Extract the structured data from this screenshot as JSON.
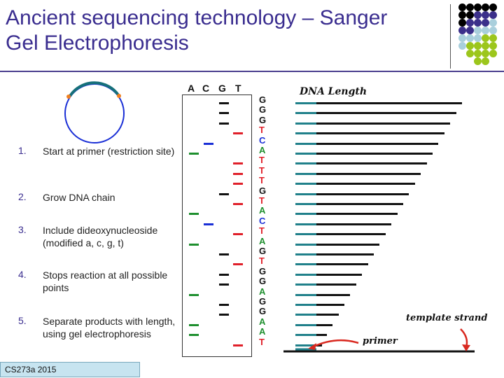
{
  "slide": {
    "title": "Ancient sequencing technology – Sanger Gel Electrophoresis",
    "footer": "CS273a 2015"
  },
  "steps": [
    {
      "num": "1.",
      "text": "Start at primer  (restriction site)"
    },
    {
      "num": "2.",
      "text": "Grow DNA chain"
    },
    {
      "num": "3.",
      "text": "Include dideoxynucleoside (modified a, c, g, t)"
    },
    {
      "num": "4.",
      "text": "Stops reaction at all possible points"
    },
    {
      "num": "5.",
      "text": "Separate products with length, using gel electrophoresis"
    }
  ],
  "gel": {
    "lanes": [
      "A",
      "C",
      "G",
      "T"
    ],
    "lane_colors": {
      "A": "#1e8f2e",
      "C": "#1a2fd6",
      "G": "#111111",
      "T": "#e0202a"
    },
    "sequence": [
      "G",
      "G",
      "G",
      "T",
      "C",
      "A",
      "T",
      "T",
      "T",
      "G",
      "T",
      "A",
      "C",
      "T",
      "A",
      "G",
      "T",
      "G",
      "G",
      "A",
      "G",
      "G",
      "A",
      "A",
      "T"
    ]
  },
  "dna": {
    "title": "DNA Length",
    "template_label": "template strand",
    "primer_label": "primer",
    "colors": {
      "primer": "#20808a",
      "fragment": "#111111",
      "arrow": "#d9281f"
    }
  },
  "logo": {
    "dots": [
      [
        "#000000",
        "#000000",
        "#000000",
        "#000000",
        "#000000"
      ],
      [
        "#000000",
        "#000000",
        "#3b2f8a",
        "#3b2f8a",
        "#3b2f8a"
      ],
      [
        "#000000",
        "#3b2f8a",
        "#3b2f8a",
        "#3b2f8a",
        "#a9cfdc"
      ],
      [
        "#3b2f8a",
        "#3b2f8a",
        "#a9cfdc",
        "#a9cfdc",
        "#a9cfdc"
      ],
      [
        "#a9cfdc",
        "#a9cfdc",
        "#a9cfdc",
        "#9cc61c",
        "#9cc61c"
      ],
      [
        "#a9cfdc",
        "#9cc61c",
        "#9cc61c",
        "#9cc61c",
        "#9cc61c"
      ],
      [
        "",
        "#9cc61c",
        "#9cc61c",
        "#9cc61c",
        "#9cc61c"
      ],
      [
        "",
        "",
        "#9cc61c",
        "#9cc61c",
        ""
      ]
    ]
  }
}
